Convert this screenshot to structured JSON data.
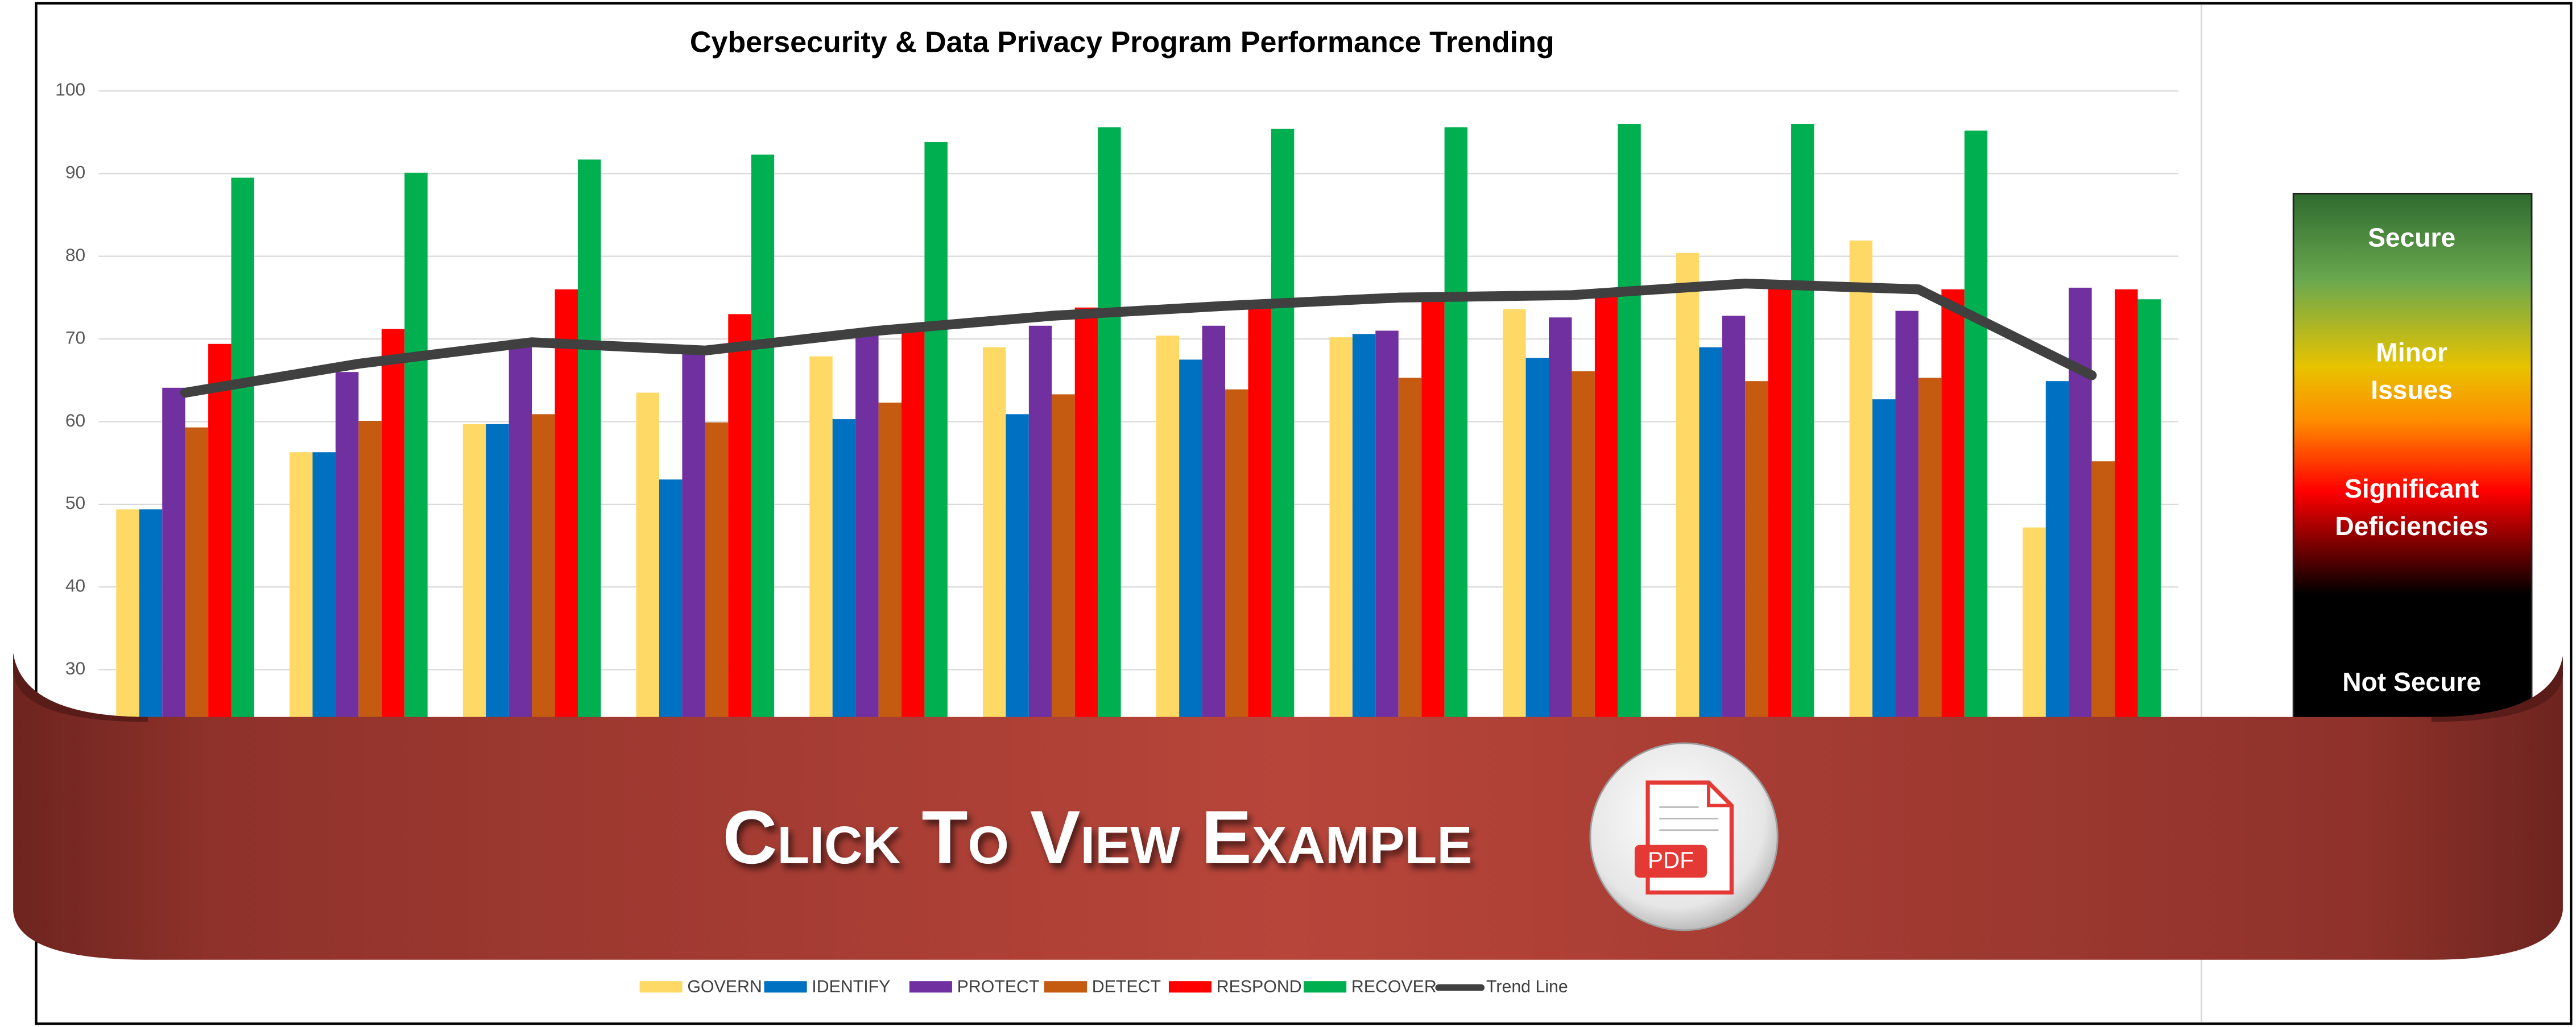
{
  "chart_data": {
    "type": "bar",
    "title": "Cybersecurity & Data Privacy Program Performance Trending",
    "ylim": [
      0,
      100
    ],
    "yticks": [
      30,
      40,
      50,
      60,
      70,
      80,
      90,
      100
    ],
    "grid": true,
    "series": [
      {
        "name": "GOVERN",
        "color": "#ffd966",
        "values": [
          49.4,
          56.3,
          59.7,
          63.5,
          67.9,
          69,
          70.4,
          70.2,
          73.6,
          80.4,
          81.9,
          47.2
        ]
      },
      {
        "name": "IDENTIFY",
        "color": "#0070c0",
        "values": [
          49.4,
          56.3,
          59.7,
          53,
          60.3,
          60.9,
          67.5,
          70.6,
          67.7,
          69,
          62.7,
          64.9
        ]
      },
      {
        "name": "PROTECT",
        "color": "#7030a0",
        "values": [
          64.1,
          66,
          69,
          68.8,
          71,
          71.6,
          71.6,
          71,
          72.6,
          72.8,
          73.4,
          76.2
        ]
      },
      {
        "name": "DETECT",
        "color": "#c55a11",
        "values": [
          59.3,
          60.1,
          60.9,
          59.9,
          62.3,
          63.3,
          63.9,
          65.3,
          66.1,
          64.9,
          65.3,
          55.2
        ]
      },
      {
        "name": "RESPOND",
        "color": "#ff0000",
        "values": [
          69.4,
          71.2,
          76,
          73,
          71,
          73.8,
          74.2,
          75.6,
          75.6,
          76.2,
          76,
          76
        ]
      },
      {
        "name": "RECOVER",
        "color": "#00b050",
        "values": [
          89.5,
          90.1,
          91.7,
          92.3,
          93.8,
          95.6,
          95.4,
          95.6,
          96,
          96,
          95.2,
          74.8
        ]
      },
      {
        "name": "Trend Line",
        "type": "line",
        "color": "#404040",
        "values": [
          63.5,
          67,
          69.6,
          68.6,
          71,
          72.8,
          74,
          75,
          75.3,
          76.7,
          76,
          65.6
        ]
      }
    ]
  },
  "gauge": {
    "labels": [
      [
        "Secure"
      ],
      [
        "Minor",
        "Issues"
      ],
      [
        "Significant",
        "Deficiencies"
      ],
      [
        "Not Secure"
      ]
    ]
  },
  "banner": {
    "text": "Click To View Example",
    "icon_label": "PDF"
  }
}
